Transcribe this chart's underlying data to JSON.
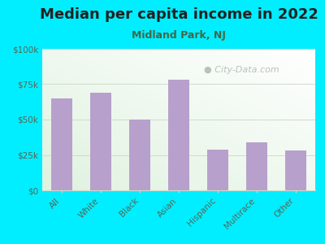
{
  "title": "Median per capita income in 2022",
  "subtitle": "Midland Park, NJ",
  "categories": [
    "All",
    "White",
    "Black",
    "Asian",
    "Hispanic",
    "Multirace",
    "Other"
  ],
  "values": [
    65000,
    69000,
    50000,
    78000,
    29000,
    34000,
    28000
  ],
  "bar_color": "#b8a0cc",
  "background_outer": "#00eeff",
  "background_inner_topleft": "#dff0e8",
  "background_inner_topright": "#f0f8f0",
  "background_inner_bottomleft": "#e0f2e2",
  "title_fontsize": 13,
  "subtitle_fontsize": 9,
  "title_color": "#222222",
  "subtitle_color": "#446644",
  "tick_label_color": "#556655",
  "ylim": [
    0,
    100000
  ],
  "yticks": [
    0,
    25000,
    50000,
    75000,
    100000
  ],
  "ytick_labels": [
    "$0",
    "$25k",
    "$50k",
    "$75k",
    "$100k"
  ],
  "watermark_text": "City-Data.com",
  "watermark_color": "#aabbaa",
  "grid_color": "#ccddcc",
  "bar_width": 0.55
}
